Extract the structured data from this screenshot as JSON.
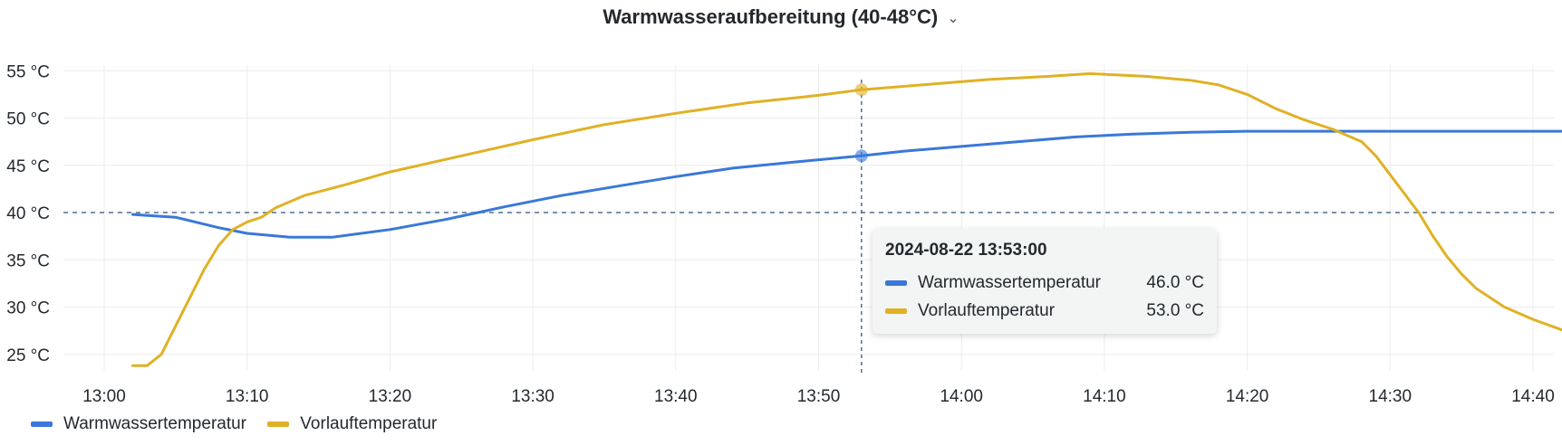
{
  "panel": {
    "title": "Warmwasseraufbereitung (40-48°C)",
    "menu_icon": "chevron-down-icon"
  },
  "tooltip": {
    "time": "2024-08-22 13:53:00",
    "rows": [
      {
        "name": "Warmwassertemperatur",
        "value": "46.0 °C",
        "color": "#3a78d8"
      },
      {
        "name": "Vorlauftemperatur",
        "value": "53.0 °C",
        "color": "#e0b125"
      }
    ]
  },
  "legend": [
    {
      "name": "Warmwassertemperatur",
      "color": "#3a78d8"
    },
    {
      "name": "Vorlauftemperatur",
      "color": "#e0b125"
    }
  ],
  "chart_data": {
    "type": "line",
    "x_unit": "minutes",
    "x_tick_labels": [
      "13:00",
      "13:10",
      "13:20",
      "13:30",
      "13:40",
      "13:50",
      "14:00",
      "14:10",
      "14:20",
      "14:30",
      "14:40"
    ],
    "y_tick_labels": [
      "25 °C",
      "30 °C",
      "35 °C",
      "40 °C",
      "45 °C",
      "50 °C",
      "55 °C"
    ],
    "xlim": [
      "13:00",
      "14:42"
    ],
    "ylim": [
      23,
      56
    ],
    "grid": true,
    "threshold": {
      "value": 40,
      "style": "dashed"
    },
    "cursor": {
      "x": "13:53"
    },
    "legend_position": "bottom-left",
    "series": [
      {
        "name": "Warmwassertemperatur",
        "color": "#3a78d8",
        "points": [
          [
            "13:02",
            39.8
          ],
          [
            "13:05",
            39.5
          ],
          [
            "13:08",
            38.4
          ],
          [
            "13:10",
            37.8
          ],
          [
            "13:13",
            37.4
          ],
          [
            "13:16",
            37.4
          ],
          [
            "13:20",
            38.2
          ],
          [
            "13:24",
            39.3
          ],
          [
            "13:28",
            40.6
          ],
          [
            "13:32",
            41.8
          ],
          [
            "13:36",
            42.8
          ],
          [
            "13:40",
            43.8
          ],
          [
            "13:44",
            44.7
          ],
          [
            "13:48",
            45.3
          ],
          [
            "13:53",
            46.0
          ],
          [
            "13:56",
            46.5
          ],
          [
            "14:00",
            47.0
          ],
          [
            "14:04",
            47.5
          ],
          [
            "14:08",
            48.0
          ],
          [
            "14:12",
            48.3
          ],
          [
            "14:16",
            48.5
          ],
          [
            "14:20",
            48.6
          ],
          [
            "14:30",
            48.6
          ],
          [
            "14:42",
            48.6
          ]
        ]
      },
      {
        "name": "Vorlauftemperatur",
        "color": "#e0b125",
        "points": [
          [
            "13:02",
            23.8
          ],
          [
            "13:03",
            23.8
          ],
          [
            "13:04",
            25.0
          ],
          [
            "13:05",
            28.0
          ],
          [
            "13:06",
            31.0
          ],
          [
            "13:07",
            34.0
          ],
          [
            "13:08",
            36.5
          ],
          [
            "13:09",
            38.2
          ],
          [
            "13:10",
            39.0
          ],
          [
            "13:11",
            39.5
          ],
          [
            "13:12",
            40.5
          ],
          [
            "13:14",
            41.8
          ],
          [
            "13:17",
            43.0
          ],
          [
            "13:20",
            44.3
          ],
          [
            "13:25",
            46.0
          ],
          [
            "13:30",
            47.7
          ],
          [
            "13:35",
            49.3
          ],
          [
            "13:40",
            50.5
          ],
          [
            "13:45",
            51.6
          ],
          [
            "13:50",
            52.4
          ],
          [
            "13:53",
            53.0
          ],
          [
            "13:58",
            53.6
          ],
          [
            "14:02",
            54.1
          ],
          [
            "14:06",
            54.4
          ],
          [
            "14:09",
            54.7
          ],
          [
            "14:13",
            54.4
          ],
          [
            "14:16",
            54.0
          ],
          [
            "14:18",
            53.5
          ],
          [
            "14:20",
            52.5
          ],
          [
            "14:22",
            51.0
          ],
          [
            "14:24",
            49.8
          ],
          [
            "14:26",
            48.8
          ],
          [
            "14:28",
            47.5
          ],
          [
            "14:29",
            46.0
          ],
          [
            "14:30",
            44.0
          ],
          [
            "14:31",
            42.0
          ],
          [
            "14:32",
            40.0
          ],
          [
            "14:33",
            37.5
          ],
          [
            "14:34",
            35.3
          ],
          [
            "14:35",
            33.5
          ],
          [
            "14:36",
            32.0
          ],
          [
            "14:38",
            30.0
          ],
          [
            "14:40",
            28.7
          ],
          [
            "14:42",
            27.6
          ]
        ]
      }
    ]
  }
}
